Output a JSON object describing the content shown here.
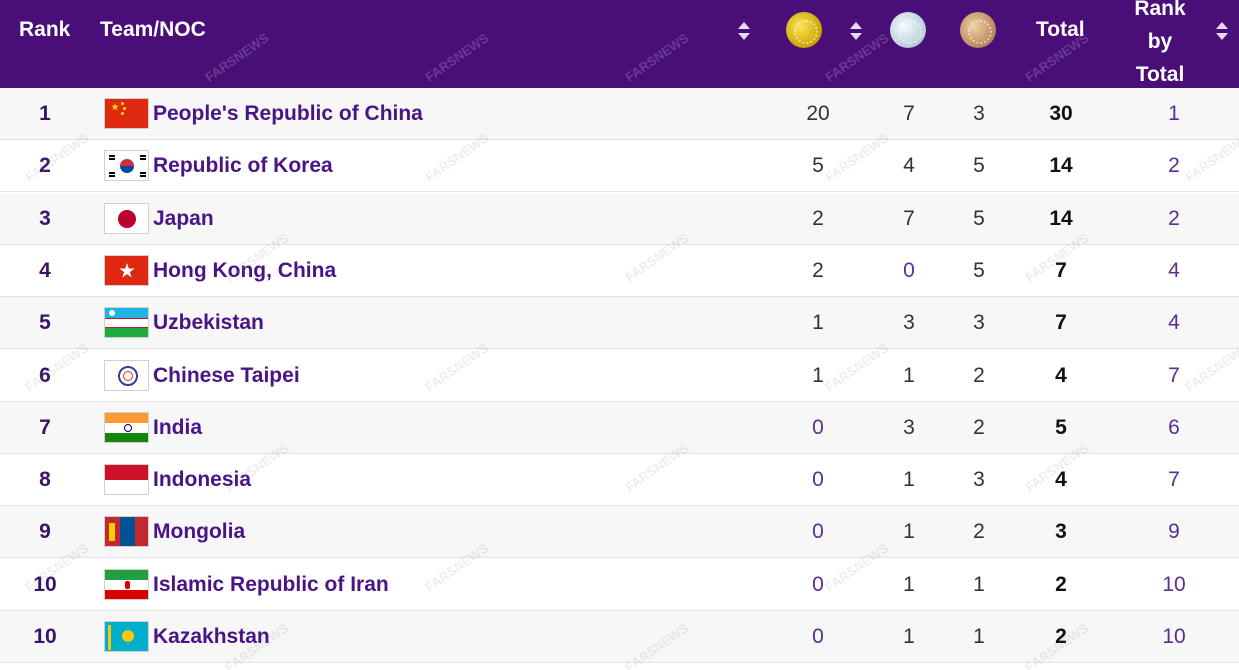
{
  "header": {
    "rank": "Rank",
    "team": "Team/NOC",
    "total": "Total",
    "rank_by_total_line1": "Rank",
    "rank_by_total_line2": "by",
    "rank_by_total_line3": "Total",
    "gold_icon": "gold-medal-icon",
    "silver_icon": "silver-medal-icon",
    "bronze_icon": "bronze-medal-icon"
  },
  "colors": {
    "header_bg": "#4a0e78",
    "name_text": "#4a1486",
    "row_alt_bg": "#f7f7f7"
  },
  "rows": [
    {
      "rank": "1",
      "name": "People's Republic of China",
      "flag": "china-flag-icon",
      "gold": "20",
      "silver": "7",
      "bronze": "3",
      "total": "30",
      "rank_by_total": "1"
    },
    {
      "rank": "2",
      "name": "Republic of Korea",
      "flag": "korea-flag-icon",
      "gold": "5",
      "silver": "4",
      "bronze": "5",
      "total": "14",
      "rank_by_total": "2"
    },
    {
      "rank": "3",
      "name": "Japan",
      "flag": "japan-flag-icon",
      "gold": "2",
      "silver": "7",
      "bronze": "5",
      "total": "14",
      "rank_by_total": "2"
    },
    {
      "rank": "4",
      "name": "Hong Kong, China",
      "flag": "hong-kong-flag-icon",
      "gold": "2",
      "silver": "0",
      "bronze": "5",
      "total": "7",
      "rank_by_total": "4"
    },
    {
      "rank": "5",
      "name": "Uzbekistan",
      "flag": "uzbekistan-flag-icon",
      "gold": "1",
      "silver": "3",
      "bronze": "3",
      "total": "7",
      "rank_by_total": "4"
    },
    {
      "rank": "6",
      "name": "Chinese Taipei",
      "flag": "chinese-taipei-flag-icon",
      "gold": "1",
      "silver": "1",
      "bronze": "2",
      "total": "4",
      "rank_by_total": "7"
    },
    {
      "rank": "7",
      "name": "India",
      "flag": "india-flag-icon",
      "gold": "0",
      "silver": "3",
      "bronze": "2",
      "total": "5",
      "rank_by_total": "6"
    },
    {
      "rank": "8",
      "name": "Indonesia",
      "flag": "indonesia-flag-icon",
      "gold": "0",
      "silver": "1",
      "bronze": "3",
      "total": "4",
      "rank_by_total": "7"
    },
    {
      "rank": "9",
      "name": "Mongolia",
      "flag": "mongolia-flag-icon",
      "gold": "0",
      "silver": "1",
      "bronze": "2",
      "total": "3",
      "rank_by_total": "9"
    },
    {
      "rank": "10",
      "name": "Islamic Republic of Iran",
      "flag": "iran-flag-icon",
      "gold": "0",
      "silver": "1",
      "bronze": "1",
      "total": "2",
      "rank_by_total": "10"
    },
    {
      "rank": "10",
      "name": "Kazakhstan",
      "flag": "kazakhstan-flag-icon",
      "gold": "0",
      "silver": "1",
      "bronze": "1",
      "total": "2",
      "rank_by_total": "10"
    }
  ],
  "watermark": "FARSNEWS"
}
